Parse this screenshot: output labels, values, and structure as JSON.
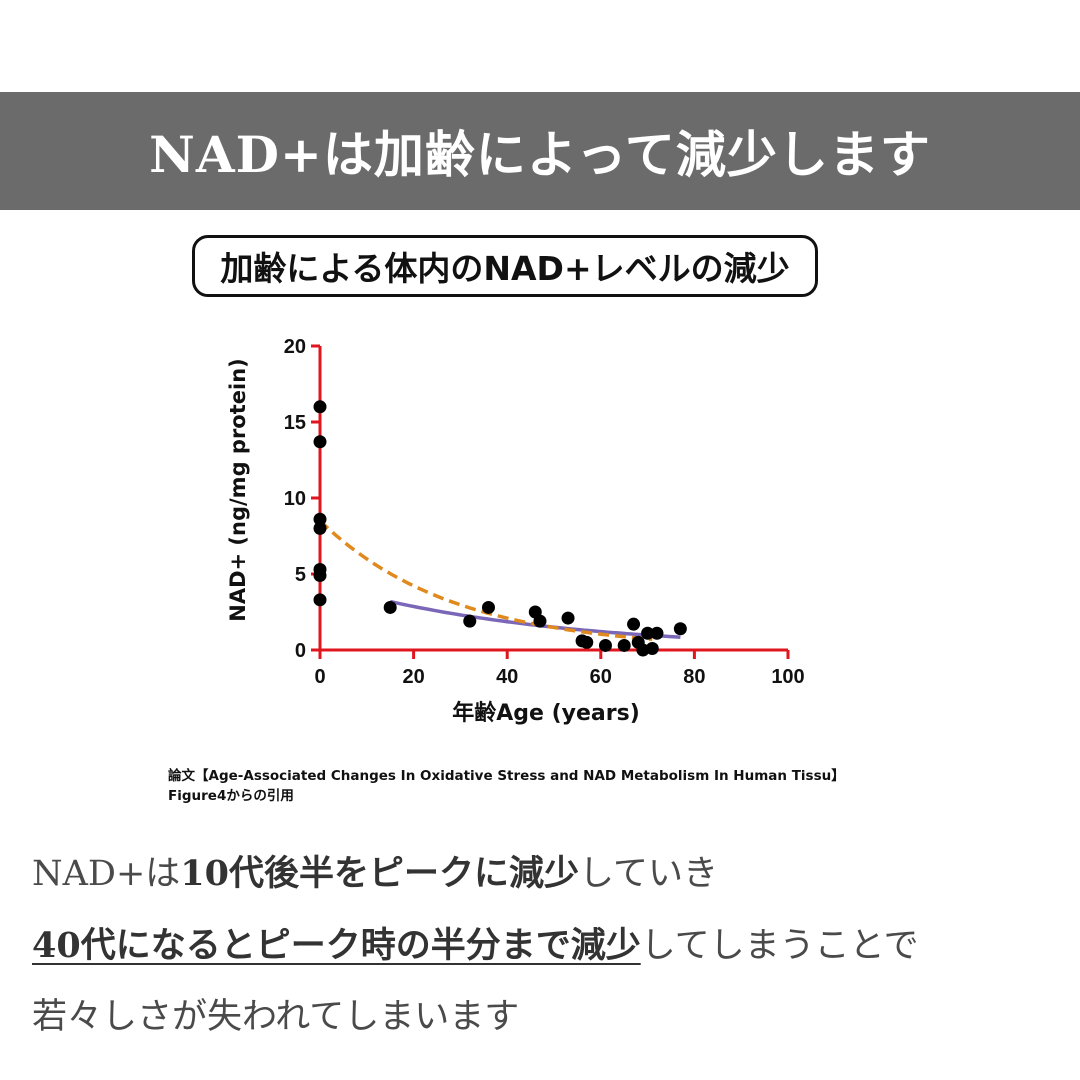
{
  "header": {
    "title": "NAD+は加齢によって減少します"
  },
  "chart_title": "加齢による体内のNAD+レベルの減少",
  "citation": {
    "line1": "論文【Age-Associated Changes In Oxidative Stress and NAD Metabolism In Human Tissu】",
    "line2": "Figure4からの引用"
  },
  "body": {
    "line1": {
      "a": "NAD+は",
      "b": "10代後半をピークに減少",
      "c": "していき"
    },
    "line2": {
      "a": "40代になるとピーク時の半分まで減少",
      "b": "してしまうことで"
    },
    "line3": "若々しさが失われてしまいます"
  },
  "colors": {
    "header_bg": "#6b6b6b",
    "axis": "#e0161f",
    "fit_dashed": "#e08a1e",
    "fit_solid": "#7a67b8",
    "points": "#000000"
  },
  "chart_data": {
    "type": "scatter",
    "xlabel": "年齢Age (years)",
    "ylabel": "NAD+ (ng/mg protein)",
    "xlim": [
      0,
      100
    ],
    "ylim": [
      0,
      20
    ],
    "x_ticks": [
      "0",
      "20",
      "40",
      "60",
      "80",
      "100"
    ],
    "y_ticks": [
      "0",
      "5",
      "10",
      "15",
      "20"
    ],
    "points": [
      {
        "x": 0,
        "y": 16.0
      },
      {
        "x": 0,
        "y": 13.7
      },
      {
        "x": 0,
        "y": 8.6
      },
      {
        "x": 0,
        "y": 8.0
      },
      {
        "x": 0,
        "y": 5.3
      },
      {
        "x": 0,
        "y": 4.9
      },
      {
        "x": 0,
        "y": 3.3
      },
      {
        "x": 15,
        "y": 2.8
      },
      {
        "x": 32,
        "y": 1.9
      },
      {
        "x": 36,
        "y": 2.8
      },
      {
        "x": 46,
        "y": 2.5
      },
      {
        "x": 47,
        "y": 1.9
      },
      {
        "x": 53,
        "y": 2.1
      },
      {
        "x": 56,
        "y": 0.6
      },
      {
        "x": 57,
        "y": 0.5
      },
      {
        "x": 61,
        "y": 0.3
      },
      {
        "x": 65,
        "y": 0.3
      },
      {
        "x": 67,
        "y": 1.7
      },
      {
        "x": 68,
        "y": 0.5
      },
      {
        "x": 69,
        "y": 0.0
      },
      {
        "x": 70,
        "y": 1.1
      },
      {
        "x": 71,
        "y": 0.1
      },
      {
        "x": 72,
        "y": 1.1
      },
      {
        "x": 77,
        "y": 1.4
      }
    ],
    "fit_dashed": {
      "a": 8.5,
      "b": 0.035,
      "x_range": [
        0,
        71
      ]
    },
    "fit_solid": {
      "a": 4.4,
      "b": 0.0215,
      "x_range": [
        15,
        77
      ]
    }
  }
}
